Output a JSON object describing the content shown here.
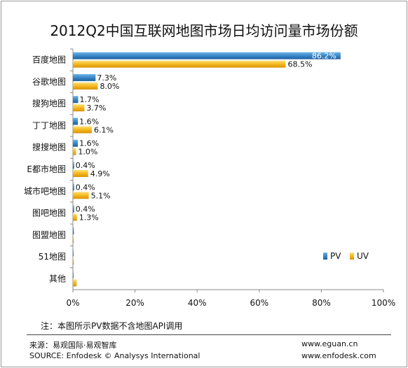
{
  "chart_data": {
    "type": "bar",
    "title": "2012Q2中国互联网地图市场日均访问量市场份额",
    "categories": [
      "百度地图",
      "谷歌地图",
      "搜狗地图",
      "丁丁地图",
      "搜搜地图",
      "E都市地图",
      "城市吧地图",
      "图吧地图",
      "图盟地图",
      "51地图",
      "其他"
    ],
    "series": [
      {
        "name": "PV",
        "values": [
          86.2,
          7.3,
          1.7,
          1.6,
          1.6,
          0.4,
          0.4,
          0.4,
          0.3,
          0.2,
          0.2
        ],
        "labels": [
          "86.2%",
          "7.3%",
          "1.7%",
          "1.6%",
          "1.6%",
          "0.4%",
          "0.4%",
          "0.4%",
          "",
          "",
          ""
        ]
      },
      {
        "name": "UV",
        "values": [
          68.5,
          8.0,
          3.7,
          6.1,
          1.0,
          4.9,
          5.1,
          1.3,
          0.3,
          0.3,
          1.2
        ],
        "labels": [
          "68.5%",
          "8.0%",
          "3.7%",
          "6.1%",
          "1.0%",
          "4.9%",
          "5.1%",
          "1.3%",
          "",
          "",
          ""
        ]
      }
    ],
    "xlim": [
      0,
      100
    ],
    "xticks": [
      "0%",
      "20%",
      "40%",
      "60%",
      "80%",
      "100%"
    ],
    "legend_placement": "bottom-right",
    "colors": {
      "PV": "#3a87c8",
      "UV": "#f5b81c"
    }
  },
  "footer": {
    "note": "注：本图所示PV数据不含地图API调用",
    "source_cn": "来源：易观国际·易观智库",
    "source_en": "SOURCE: Enfodesk © Analysys International",
    "url1": "www.eguan.cn",
    "url2": "www.enfodesk.com"
  }
}
